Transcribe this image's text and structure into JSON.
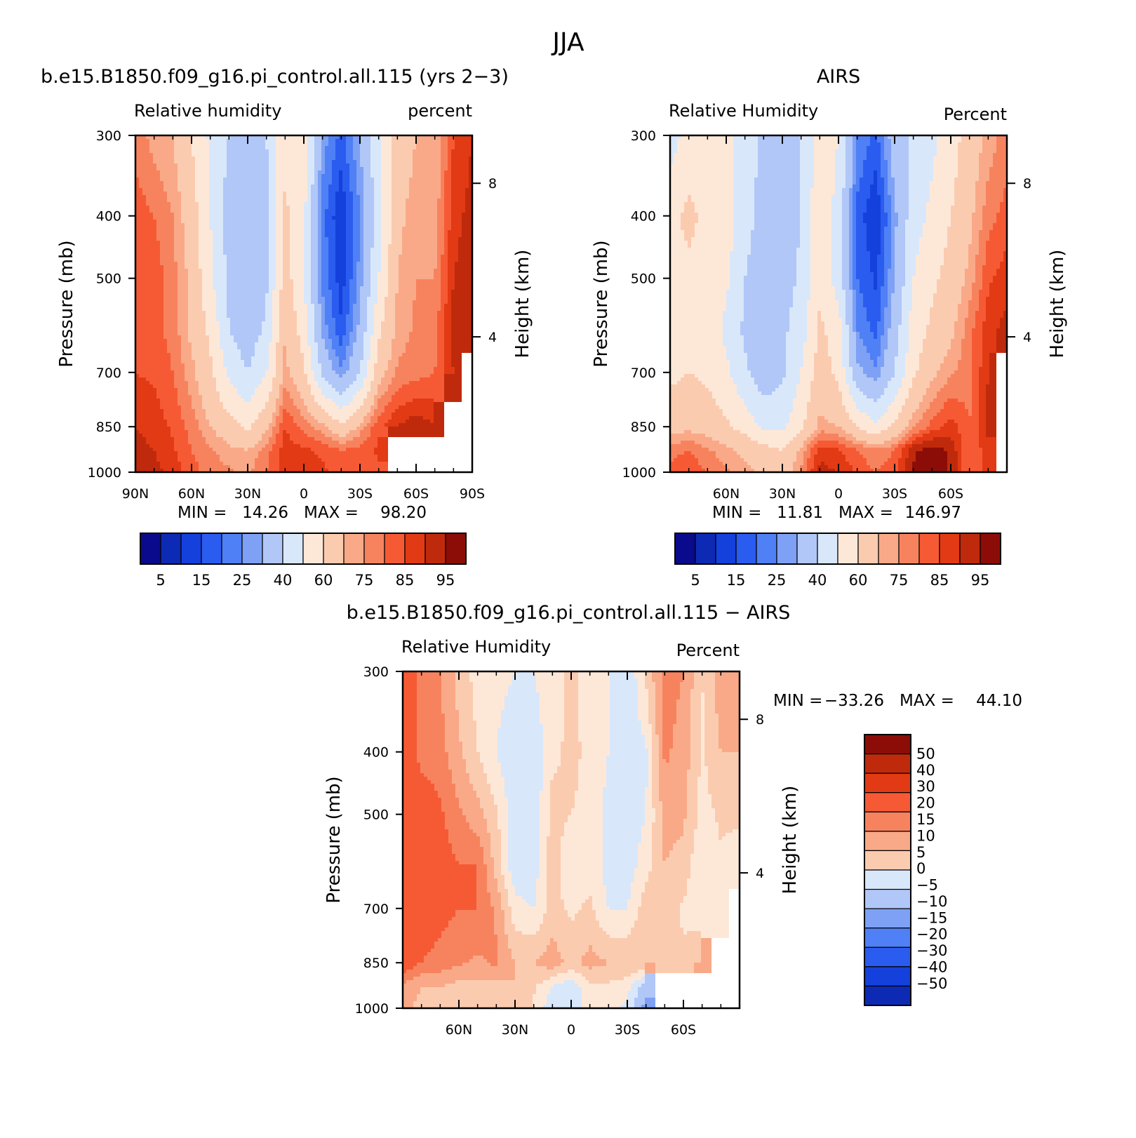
{
  "figure": {
    "title": "JJA"
  },
  "colors": {
    "abs": [
      "#0a0a8c",
      "#0d2ab4",
      "#1440dc",
      "#2a5cf0",
      "#4f80f5",
      "#7ea1f5",
      "#b0c7f8",
      "#d9e7fa",
      "#fde8d8",
      "#fbcbb0",
      "#f9a987",
      "#f7835e",
      "#f65a34",
      "#e23a14",
      "#bf2a0c",
      "#8c0d07"
    ],
    "diff": [
      "#0a0a8c",
      "#0d2ab4",
      "#1440dc",
      "#2a5cf0",
      "#4f80f5",
      "#7ea1f5",
      "#b0c7f8",
      "#d9e7fa",
      "#fde8d8",
      "#fbcbb0",
      "#f9a987",
      "#f7835e",
      "#f65a34",
      "#e23a14",
      "#bf2a0c",
      "#8c0d07"
    ],
    "missing": "#ffffff"
  },
  "chart_data": [
    {
      "type": "heatmap",
      "id": "model",
      "title": "b.e15.B1850.f09_g16.pi_control.all.115 (yrs 2−3)",
      "subtitle_left": "Relative humidity",
      "subtitle_right": "percent",
      "ylabel": "Pressure (mb)",
      "ylabel_right": "Height (km)",
      "xlim": [
        90,
        -90
      ],
      "ylim": [
        1000,
        300
      ],
      "x_ticks": [
        {
          "v": 90,
          "label": "90N"
        },
        {
          "v": 60,
          "label": "60N"
        },
        {
          "v": 30,
          "label": "30N"
        },
        {
          "v": 0,
          "label": "0"
        },
        {
          "v": -30,
          "label": "30S"
        },
        {
          "v": -60,
          "label": "60S"
        },
        {
          "v": -90,
          "label": "90S"
        }
      ],
      "y_ticks": [
        {
          "v": 300,
          "label": "300"
        },
        {
          "v": 400,
          "label": "400"
        },
        {
          "v": 500,
          "label": "500"
        },
        {
          "v": 700,
          "label": "700"
        },
        {
          "v": 850,
          "label": "850"
        },
        {
          "v": 1000,
          "label": "1000"
        }
      ],
      "y_ticks_right": [
        {
          "v": 8,
          "label": "8"
        },
        {
          "v": 4,
          "label": "4"
        }
      ],
      "stats": {
        "min_label": "MIN =",
        "min": "14.26",
        "max_label": "MAX =",
        "max": "98.20"
      },
      "colorbar": {
        "orientation": "horizontal",
        "levels": [
          "5",
          "15",
          "25",
          "40",
          "60",
          "75",
          "85",
          "95"
        ]
      },
      "x": [
        90,
        80,
        70,
        60,
        50,
        40,
        30,
        20,
        10,
        0,
        -10,
        -20,
        -30,
        -40,
        -50,
        -60,
        -70,
        -80,
        -90
      ],
      "y": [
        300,
        400,
        500,
        600,
        700,
        850,
        925,
        1000
      ],
      "z": [
        [
          78,
          73,
          70,
          60,
          48,
          40,
          38,
          40,
          58,
          56,
          28,
          18,
          30,
          48,
          65,
          70,
          70,
          85,
          90
        ],
        [
          83,
          80,
          75,
          65,
          50,
          35,
          30,
          36,
          62,
          52,
          22,
          10,
          25,
          45,
          68,
          73,
          72,
          88,
          92
        ],
        [
          85,
          83,
          77,
          68,
          52,
          38,
          32,
          38,
          65,
          50,
          24,
          12,
          27,
          50,
          70,
          75,
          75,
          90,
          94
        ],
        [
          82,
          82,
          78,
          68,
          58,
          40,
          34,
          42,
          70,
          55,
          28,
          16,
          32,
          58,
          72,
          76,
          78,
          92,
          94
        ],
        [
          85,
          84,
          80,
          72,
          62,
          48,
          40,
          50,
          72,
          62,
          38,
          26,
          40,
          66,
          76,
          78,
          80,
          90,
          null
        ],
        [
          90,
          88,
          84,
          78,
          70,
          64,
          58,
          68,
          85,
          78,
          72,
          62,
          72,
          84,
          90,
          94,
          90,
          null,
          null
        ],
        [
          92,
          90,
          86,
          80,
          76,
          72,
          70,
          78,
          88,
          86,
          84,
          80,
          82,
          86,
          null,
          null,
          null,
          null,
          null
        ],
        [
          94,
          92,
          88,
          82,
          78,
          76,
          74,
          80,
          88,
          88,
          86,
          84,
          82,
          84,
          null,
          null,
          null,
          null,
          null
        ]
      ]
    },
    {
      "type": "heatmap",
      "id": "obs",
      "title": "AIRS",
      "subtitle_left": "Relative Humidity",
      "subtitle_right": "Percent",
      "ylabel": "Pressure (mb)",
      "ylabel_right": "Height (km)",
      "xlim": [
        90,
        -90
      ],
      "ylim": [
        1000,
        300
      ],
      "x_ticks": [
        {
          "v": 60,
          "label": "60N"
        },
        {
          "v": 30,
          "label": "30N"
        },
        {
          "v": 0,
          "label": "0"
        },
        {
          "v": -30,
          "label": "30S"
        },
        {
          "v": -60,
          "label": "60S"
        }
      ],
      "y_ticks": [
        {
          "v": 300,
          "label": "300"
        },
        {
          "v": 400,
          "label": "400"
        },
        {
          "v": 500,
          "label": "500"
        },
        {
          "v": 700,
          "label": "700"
        },
        {
          "v": 850,
          "label": "850"
        },
        {
          "v": 1000,
          "label": "1000"
        }
      ],
      "y_ticks_right": [
        {
          "v": 8,
          "label": "8"
        },
        {
          "v": 4,
          "label": "4"
        }
      ],
      "stats": {
        "min_label": "MIN =",
        "min": "11.81",
        "max_label": "MAX =",
        "max": "146.97"
      },
      "colorbar": {
        "orientation": "horizontal",
        "levels": [
          "5",
          "15",
          "25",
          "40",
          "60",
          "75",
          "85",
          "95"
        ]
      },
      "x": [
        90,
        80,
        70,
        60,
        50,
        40,
        30,
        20,
        10,
        0,
        -10,
        -20,
        -30,
        -40,
        -50,
        -60,
        -70,
        -80,
        -90
      ],
      "y": [
        300,
        400,
        500,
        600,
        700,
        850,
        925,
        1000
      ],
      "z": [
        [
          45,
          55,
          55,
          52,
          45,
          38,
          38,
          40,
          55,
          50,
          25,
          18,
          35,
          42,
          48,
          55,
          65,
          72,
          78
        ],
        [
          58,
          62,
          58,
          54,
          45,
          35,
          35,
          40,
          58,
          46,
          18,
          10,
          28,
          46,
          52,
          60,
          68,
          78,
          82
        ],
        [
          56,
          58,
          56,
          52,
          40,
          32,
          35,
          42,
          58,
          45,
          20,
          14,
          30,
          50,
          58,
          64,
          72,
          84,
          88
        ],
        [
          55,
          58,
          55,
          48,
          38,
          32,
          38,
          45,
          62,
          55,
          25,
          18,
          35,
          55,
          62,
          68,
          78,
          88,
          92
        ],
        [
          58,
          60,
          58,
          52,
          42,
          34,
          38,
          50,
          65,
          58,
          32,
          26,
          40,
          58,
          68,
          74,
          78,
          90,
          null
        ],
        [
          66,
          68,
          66,
          62,
          56,
          48,
          48,
          58,
          72,
          70,
          60,
          52,
          62,
          74,
          82,
          88,
          80,
          92,
          null
        ],
        [
          78,
          80,
          76,
          72,
          68,
          64,
          60,
          72,
          88,
          86,
          80,
          76,
          80,
          94,
          98,
          94,
          80,
          88,
          null
        ],
        [
          82,
          84,
          80,
          76,
          72,
          68,
          64,
          76,
          92,
          90,
          84,
          80,
          84,
          96,
          100,
          94,
          80,
          88,
          null
        ]
      ]
    },
    {
      "type": "heatmap",
      "id": "diff",
      "title": "b.e15.B1850.f09_g16.pi_control.all.115 − AIRS",
      "subtitle_left": "Relative Humidity",
      "subtitle_right": "Percent",
      "ylabel": "Pressure (mb)",
      "ylabel_right": "Height (km)",
      "xlim": [
        90,
        -90
      ],
      "ylim": [
        1000,
        300
      ],
      "x_ticks": [
        {
          "v": 60,
          "label": "60N"
        },
        {
          "v": 30,
          "label": "30N"
        },
        {
          "v": 0,
          "label": "0"
        },
        {
          "v": -30,
          "label": "30S"
        },
        {
          "v": -60,
          "label": "60S"
        }
      ],
      "y_ticks": [
        {
          "v": 300,
          "label": "300"
        },
        {
          "v": 400,
          "label": "400"
        },
        {
          "v": 500,
          "label": "500"
        },
        {
          "v": 700,
          "label": "700"
        },
        {
          "v": 850,
          "label": "850"
        },
        {
          "v": 1000,
          "label": "1000"
        }
      ],
      "y_ticks_right": [
        {
          "v": 8,
          "label": "8"
        },
        {
          "v": 4,
          "label": "4"
        }
      ],
      "stats": {
        "min_label": "MIN =",
        "min": "−33.26",
        "max_label": "MAX =",
        "max": "44.10"
      },
      "colorbar": {
        "orientation": "vertical",
        "levels": [
          "50",
          "40",
          "30",
          "20",
          "15",
          "10",
          "5",
          "0",
          "−5",
          "−10",
          "−15",
          "−20",
          "−30",
          "−40",
          "−50"
        ]
      },
      "x": [
        90,
        80,
        70,
        60,
        50,
        40,
        30,
        20,
        10,
        0,
        -10,
        -20,
        -30,
        -40,
        -50,
        -60,
        -70,
        -80,
        -90
      ],
      "y": [
        300,
        400,
        500,
        600,
        700,
        850,
        925,
        1000
      ],
      "z": [
        [
          24,
          18,
          15,
          8,
          3,
          2,
          0,
          0,
          3,
          6,
          3,
          0,
          -5,
          6,
          17,
          15,
          5,
          13,
          12
        ],
        [
          25,
          18,
          17,
          11,
          5,
          0,
          -5,
          -4,
          4,
          6,
          4,
          0,
          -3,
          -1,
          16,
          13,
          4,
          10,
          10
        ],
        [
          29,
          25,
          21,
          16,
          12,
          6,
          -3,
          -4,
          7,
          5,
          4,
          -2,
          -3,
          0,
          12,
          11,
          3,
          6,
          6
        ],
        [
          27,
          24,
          23,
          20,
          20,
          8,
          -4,
          -3,
          8,
          0,
          3,
          -2,
          -3,
          3,
          10,
          8,
          0,
          4,
          2
        ],
        [
          27,
          24,
          22,
          20,
          20,
          14,
          2,
          0,
          7,
          4,
          6,
          0,
          0,
          8,
          8,
          4,
          2,
          0,
          null
        ],
        [
          24,
          20,
          18,
          16,
          14,
          16,
          10,
          10,
          13,
          8,
          12,
          10,
          10,
          10,
          8,
          6,
          10,
          null,
          null
        ],
        [
          14,
          10,
          10,
          8,
          8,
          8,
          10,
          6,
          0,
          -4,
          4,
          4,
          2,
          -8,
          null,
          null,
          null,
          null,
          null
        ],
        [
          12,
          8,
          8,
          6,
          6,
          8,
          10,
          4,
          -4,
          -2,
          2,
          4,
          -2,
          -12,
          null,
          null,
          null,
          null,
          null
        ]
      ],
      "contour_levels": [
        -50,
        -40,
        -30,
        -20,
        -15,
        -10,
        -5,
        0,
        5,
        10,
        15,
        20,
        30,
        40,
        50
      ]
    }
  ]
}
